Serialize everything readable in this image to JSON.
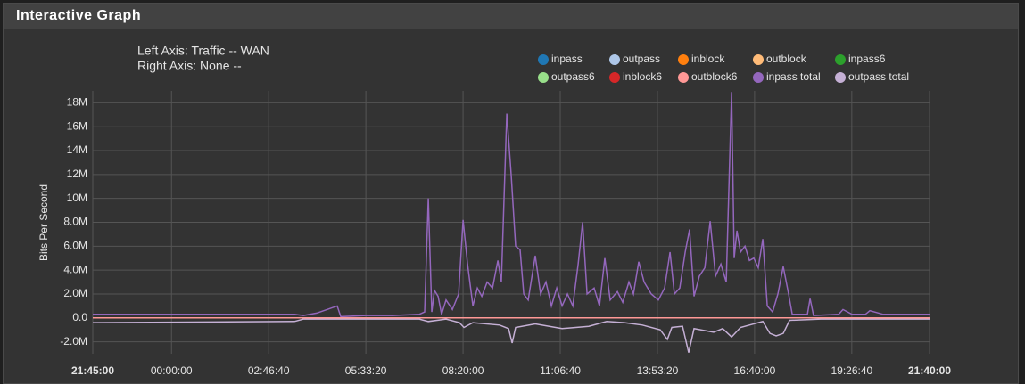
{
  "panel": {
    "title": "Interactive Graph"
  },
  "chart_data": {
    "type": "line",
    "left_axis_label": "Left Axis: Traffic -- WAN",
    "right_axis_label": "Right Axis: None --",
    "y_label": "Bits Per Second",
    "xlim": [
      78300,
      164400
    ],
    "xticks": [
      {
        "value": 78300,
        "label": "21:45:00"
      },
      {
        "value": 86400,
        "label": "00:00:00"
      },
      {
        "value": 96400,
        "label": "02:46:40"
      },
      {
        "value": 106400,
        "label": "05:33:20"
      },
      {
        "value": 116400,
        "label": "08:20:00"
      },
      {
        "value": 126400,
        "label": "11:06:40"
      },
      {
        "value": 136400,
        "label": "13:53:20"
      },
      {
        "value": 146400,
        "label": "16:40:00"
      },
      {
        "value": 156400,
        "label": "19:26:40"
      },
      {
        "value": 164400,
        "label": "21:40:00"
      }
    ],
    "ylim": [
      -3000000,
      19000000
    ],
    "yticks": [
      {
        "value": -2000000,
        "label": "-2.0M"
      },
      {
        "value": 0,
        "label": "0.0"
      },
      {
        "value": 2000000,
        "label": "2.0M"
      },
      {
        "value": 4000000,
        "label": "4.0M"
      },
      {
        "value": 6000000,
        "label": "6.0M"
      },
      {
        "value": 8000000,
        "label": "8.0M"
      },
      {
        "value": 10000000,
        "label": "10M"
      },
      {
        "value": 12000000,
        "label": "12M"
      },
      {
        "value": 14000000,
        "label": "14M"
      },
      {
        "value": 16000000,
        "label": "16M"
      },
      {
        "value": 18000000,
        "label": "18M"
      }
    ],
    "grid": true,
    "series": [
      {
        "name": "inpass",
        "color": "#1f77b4"
      },
      {
        "name": "outpass",
        "color": "#aec7e8"
      },
      {
        "name": "inblock",
        "color": "#ff7f0e"
      },
      {
        "name": "outblock",
        "color": "#ffbb78"
      },
      {
        "name": "inpass6",
        "color": "#2ca02c"
      },
      {
        "name": "outpass6",
        "color": "#98df8a"
      },
      {
        "name": "inblock6",
        "color": "#d62728"
      },
      {
        "name": "outblock6",
        "color": "#ff9896",
        "x": [
          78300,
          164400
        ],
        "values": [
          0,
          0
        ]
      },
      {
        "name": "inpass total",
        "color": "#9467bd",
        "x": [
          78300,
          99050,
          99960,
          101340,
          103450,
          103820,
          106390,
          109150,
          111900,
          112450,
          112820,
          113180,
          113460,
          113830,
          114190,
          114650,
          115300,
          115940,
          116400,
          116860,
          117410,
          117870,
          118330,
          118880,
          119430,
          119980,
          120340,
          120900,
          121350,
          121810,
          122270,
          122640,
          123100,
          123830,
          124380,
          124930,
          125490,
          126040,
          126590,
          127140,
          127690,
          128240,
          128700,
          129160,
          129890,
          130440,
          130990,
          131540,
          132280,
          132830,
          133470,
          133930,
          134480,
          135030,
          135770,
          136500,
          137140,
          137700,
          138150,
          138700,
          139260,
          139710,
          140170,
          140720,
          141280,
          141830,
          142380,
          142930,
          143480,
          144030,
          144300,
          144580,
          144950,
          145410,
          145870,
          146320,
          146780,
          147240,
          147700,
          148250,
          148800,
          149350,
          149900,
          150270,
          151830,
          152110,
          152470,
          155050,
          155500,
          156420,
          157800,
          158260,
          159640,
          164400
        ],
        "values": [
          300000,
          300000,
          200000,
          400000,
          1000000,
          100000,
          200000,
          200000,
          300000,
          500000,
          10000000,
          500000,
          2300000,
          1800000,
          300000,
          1500000,
          700000,
          2000000,
          8200000,
          4500000,
          1000000,
          2500000,
          1800000,
          3000000,
          2500000,
          4800000,
          3000000,
          17100000,
          12000000,
          6000000,
          5700000,
          2000000,
          1500000,
          5200000,
          2000000,
          3000000,
          1000000,
          2500000,
          1000000,
          2000000,
          1000000,
          4500000,
          8000000,
          2000000,
          2500000,
          1000000,
          5000000,
          1500000,
          2200000,
          1300000,
          3000000,
          2000000,
          4700000,
          3000000,
          2000000,
          1500000,
          2500000,
          5500000,
          2000000,
          2500000,
          5500000,
          7400000,
          1800000,
          3500000,
          4200000,
          8100000,
          3500000,
          4500000,
          3000000,
          18900000,
          5000000,
          7300000,
          5500000,
          6000000,
          4800000,
          5000000,
          4200000,
          6600000,
          1000000,
          500000,
          2000000,
          4300000,
          2000000,
          300000,
          300000,
          1600000,
          200000,
          300000,
          700000,
          300000,
          300000,
          600000,
          300000,
          300000
        ]
      },
      {
        "name": "outpass total",
        "color": "#c5b0d5",
        "x": [
          78300,
          99050,
          99960,
          111900,
          112820,
          114650,
          116030,
          116490,
          117410,
          120160,
          121080,
          121450,
          121810,
          123830,
          126590,
          129340,
          131180,
          133010,
          134850,
          136690,
          137420,
          137880,
          138980,
          139620,
          140170,
          142190,
          143110,
          144030,
          144950,
          145870,
          147240,
          147980,
          148620,
          149350,
          150000,
          153210,
          164400
        ],
        "values": [
          -400000,
          -300000,
          -100000,
          -100000,
          -300000,
          -100000,
          -400000,
          -800000,
          -400000,
          -600000,
          -900000,
          -2100000,
          -800000,
          -500000,
          -900000,
          -700000,
          -300000,
          -400000,
          -600000,
          -1000000,
          -1800000,
          -800000,
          -700000,
          -2900000,
          -900000,
          -1200000,
          -900000,
          -1600000,
          -800000,
          -600000,
          -300000,
          -1300000,
          -1500000,
          -1300000,
          -200000,
          -100000,
          -100000
        ]
      }
    ]
  }
}
